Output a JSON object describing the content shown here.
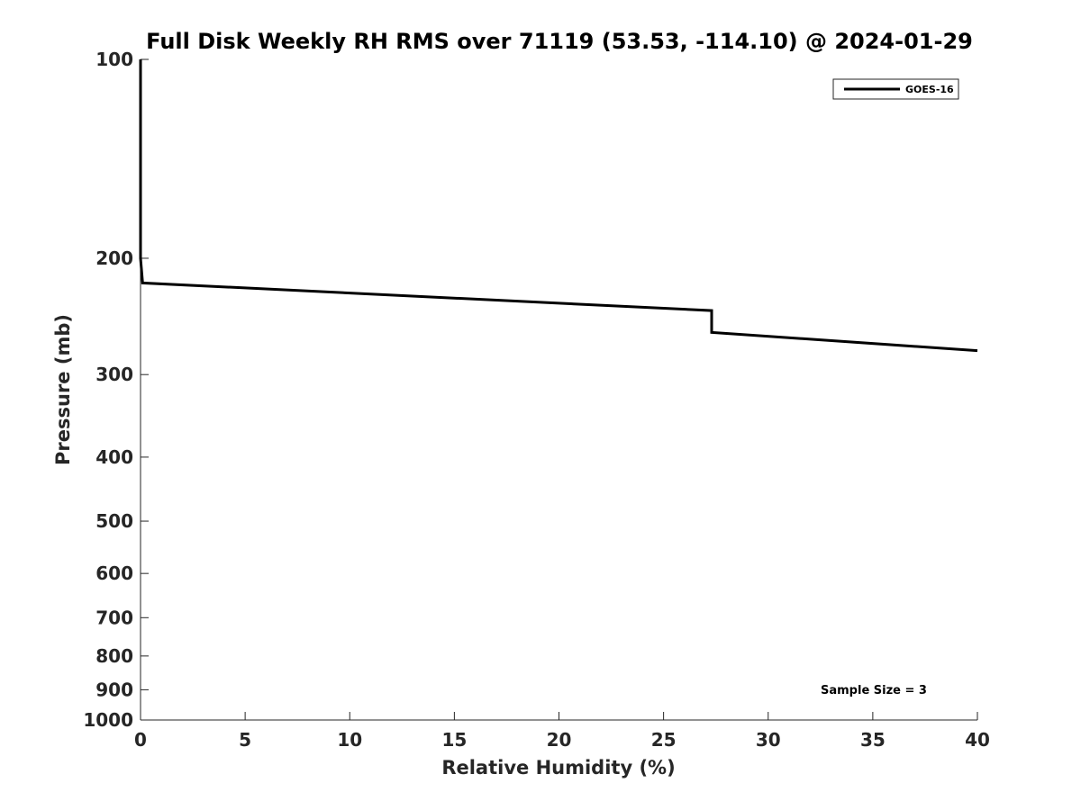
{
  "chart_data": {
    "type": "line",
    "title": "Full Disk Weekly RH RMS over 71119 (53.53, -114.10) @ 2024-01-29",
    "xlabel": "Relative Humidity (%)",
    "ylabel": "Pressure (mb)",
    "xlim": [
      0,
      40
    ],
    "ylim": [
      100,
      1000
    ],
    "y_scale": "log",
    "y_reversed": true,
    "x_ticks": [
      0,
      5,
      10,
      15,
      20,
      25,
      30,
      35,
      40
    ],
    "y_ticks": [
      100,
      200,
      300,
      400,
      500,
      600,
      700,
      800,
      900,
      1000
    ],
    "grid": false,
    "legend_position": "top-right",
    "series": [
      {
        "name": "GOES-16",
        "color": "#000000",
        "points": [
          {
            "x": 0.0,
            "y": 100
          },
          {
            "x": 0.0,
            "y": 150
          },
          {
            "x": 0.0,
            "y": 200
          },
          {
            "x": 0.1,
            "y": 218
          },
          {
            "x": 27.3,
            "y": 240
          },
          {
            "x": 27.3,
            "y": 259
          },
          {
            "x": 40.0,
            "y": 276
          }
        ]
      }
    ],
    "annotation": "Sample Size = 3"
  }
}
